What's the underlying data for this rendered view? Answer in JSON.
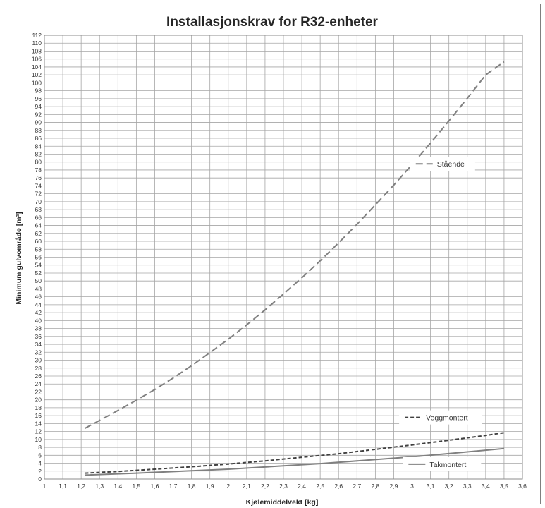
{
  "chart_data": {
    "type": "line",
    "title": "Installasjonskrav for R32-enheter",
    "xlabel": "Kjølemiddelvekt [kg]",
    "ylabel": "Minimum gulvområde [m²]",
    "xlim": [
      1,
      3.6
    ],
    "ylim": [
      0,
      112
    ],
    "x_ticks": [
      "1",
      "1,1",
      "1,2",
      "1,3",
      "1,4",
      "1,5",
      "1,6",
      "1,7",
      "1,8",
      "1,9",
      "2",
      "2,1",
      "2,2",
      "2,3",
      "2,4",
      "2,5",
      "2,6",
      "2,7",
      "2,8",
      "2,9",
      "3",
      "3,1",
      "3,2",
      "3,3",
      "3,4",
      "3,5",
      "3,6"
    ],
    "y_ticks": [
      "0",
      "2",
      "4",
      "6",
      "8",
      "10",
      "12",
      "14",
      "16",
      "18",
      "20",
      "22",
      "24",
      "26",
      "28",
      "30",
      "32",
      "34",
      "36",
      "38",
      "40",
      "42",
      "44",
      "46",
      "48",
      "50",
      "52",
      "54",
      "56",
      "58",
      "60",
      "62",
      "64",
      "66",
      "68",
      "70",
      "72",
      "74",
      "76",
      "78",
      "80",
      "82",
      "84",
      "86",
      "88",
      "90",
      "92",
      "94",
      "96",
      "98",
      "100",
      "102",
      "104",
      "106",
      "108",
      "110",
      "112"
    ],
    "grid": true,
    "series": [
      {
        "name": "Stående",
        "style": "long-dash",
        "color": "#808080",
        "x": [
          1.22,
          1.3,
          1.4,
          1.5,
          1.6,
          1.7,
          1.8,
          1.9,
          2.0,
          2.1,
          2.2,
          2.3,
          2.4,
          2.5,
          2.6,
          2.7,
          2.8,
          2.9,
          3.0,
          3.1,
          3.2,
          3.3,
          3.4,
          3.5
        ],
        "values": [
          12.8,
          14.8,
          17.3,
          19.9,
          22.6,
          25.5,
          28.6,
          31.9,
          35.3,
          38.9,
          42.7,
          46.7,
          50.8,
          55.1,
          59.6,
          64.3,
          69.2,
          74.2,
          79.4,
          84.8,
          90.4,
          96.1,
          102.0,
          105.3
        ]
      },
      {
        "name": "Veggmontert",
        "style": "short-dash",
        "color": "#404040",
        "x": [
          1.22,
          1.4,
          1.6,
          1.8,
          2.0,
          2.2,
          2.4,
          2.6,
          2.8,
          3.0,
          3.2,
          3.4,
          3.5
        ],
        "values": [
          1.5,
          1.9,
          2.5,
          3.1,
          3.8,
          4.6,
          5.5,
          6.4,
          7.5,
          8.6,
          9.8,
          11.0,
          11.7
        ]
      },
      {
        "name": "Takmontert",
        "style": "solid",
        "color": "#808080",
        "x": [
          1.22,
          1.5,
          2.0,
          2.5,
          3.0,
          3.5
        ],
        "values": [
          1.0,
          1.5,
          2.5,
          3.9,
          5.6,
          7.7
        ]
      }
    ]
  }
}
